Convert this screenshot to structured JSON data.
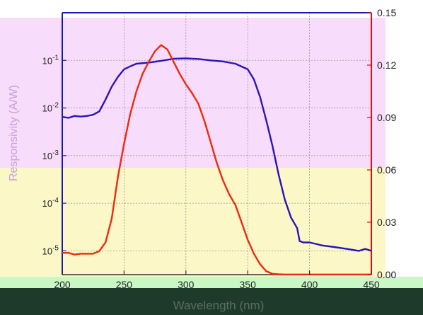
{
  "chart_data": {
    "type": "line",
    "title": "",
    "xlabel": "Wavelength (nm)",
    "ylabel_left": "Responsivity (A/W)",
    "ylabel_right": "",
    "xlim": [
      200,
      450
    ],
    "x_ticks": [
      "200",
      "250",
      "300",
      "350",
      "400",
      "450"
    ],
    "ylim_left_log10": [
      -5.5,
      0
    ],
    "y_ticks_left": [
      {
        "base": "10",
        "exp": "-1",
        "value": 0.1
      },
      {
        "base": "10",
        "exp": "-2",
        "value": 0.01
      },
      {
        "base": "10",
        "exp": "-3",
        "value": 0.001
      },
      {
        "base": "10",
        "exp": "-4",
        "value": 0.0001
      },
      {
        "base": "10",
        "exp": "-5",
        "value": 1e-05
      }
    ],
    "ylim_right": [
      0,
      0.15
    ],
    "y_ticks_right": [
      "0.00",
      "0.03",
      "0.06",
      "0.09",
      "0.12",
      "0.15"
    ],
    "grid": true,
    "series": [
      {
        "axis": "left",
        "color": "#2a13b8",
        "x": [
          200,
          205,
          210,
          215,
          220,
          225,
          230,
          235,
          240,
          245,
          250,
          255,
          260,
          270,
          280,
          290,
          300,
          310,
          320,
          330,
          340,
          350,
          355,
          360,
          365,
          370,
          375,
          380,
          385,
          390,
          392,
          395,
          400,
          405,
          410,
          420,
          430,
          440,
          445,
          450
        ],
        "y": [
          0.0065,
          0.0062,
          0.0068,
          0.0066,
          0.0068,
          0.0072,
          0.0085,
          0.015,
          0.028,
          0.045,
          0.065,
          0.075,
          0.085,
          0.09,
          0.098,
          0.108,
          0.11,
          0.107,
          0.1,
          0.095,
          0.085,
          0.065,
          0.04,
          0.017,
          0.0055,
          0.0016,
          0.0004,
          0.00012,
          5e-05,
          3e-05,
          1.6e-05,
          1.5e-05,
          1.5e-05,
          1.4e-05,
          1.3e-05,
          1.2e-05,
          1.1e-05,
          1e-05,
          1.1e-05,
          1e-05
        ]
      },
      {
        "axis": "right",
        "color": "#ee2a10",
        "x": [
          200,
          205,
          210,
          215,
          220,
          225,
          230,
          235,
          240,
          245,
          250,
          255,
          260,
          265,
          270,
          275,
          280,
          285,
          290,
          295,
          300,
          305,
          310,
          315,
          320,
          325,
          330,
          335,
          340,
          345,
          350,
          355,
          360,
          365,
          370,
          375,
          380,
          385,
          390,
          400,
          410,
          420,
          430,
          440,
          450
        ],
        "y": [
          0.0125,
          0.0125,
          0.0115,
          0.012,
          0.012,
          0.012,
          0.0135,
          0.0185,
          0.032,
          0.056,
          0.075,
          0.092,
          0.105,
          0.115,
          0.122,
          0.128,
          0.1315,
          0.129,
          0.122,
          0.115,
          0.109,
          0.104,
          0.098,
          0.088,
          0.076,
          0.064,
          0.054,
          0.046,
          0.04,
          0.03,
          0.02,
          0.012,
          0.006,
          0.002,
          0.0005,
          0.0002,
          0.0001,
          0.0001,
          0.0001,
          0.0001,
          0.0001,
          0.0001,
          0.0001,
          0.0001,
          0.0001
        ]
      }
    ]
  },
  "colors": {
    "left_axis": "#1a1aa8",
    "right_axis": "#ff0000",
    "grid": "#9a9a9a",
    "panel_top": "#f8dcfb",
    "panel_bottom": "#fbf7c7",
    "bottom_strip": "#c9f7c5",
    "footer": "#1d3a2b",
    "xlabel_text": "#5c6e64"
  }
}
